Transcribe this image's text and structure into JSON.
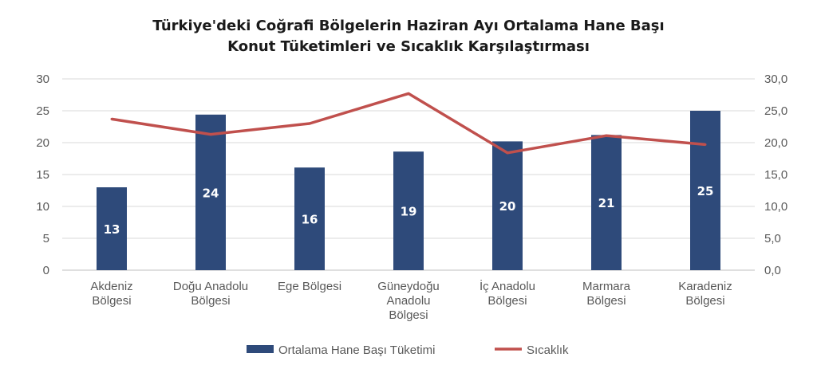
{
  "chart_data": {
    "type": "bar",
    "title_line1": "Türkiye'deki Coğrafi Bölgelerin Haziran Ayı Ortalama Hane Başı",
    "title_line2": "Konut Tüketimleri ve Sıcaklık Karşılaştırması",
    "categories": [
      [
        "Akdeniz",
        "Bölgesi"
      ],
      [
        "Doğu Anadolu",
        "Bölgesi"
      ],
      [
        "Ege Bölgesi"
      ],
      [
        "Güneydoğu",
        "Anadolu",
        "Bölgesi"
      ],
      [
        "İç Anadolu",
        "Bölgesi"
      ],
      [
        "Marmara",
        "Bölgesi"
      ],
      [
        "Karadeniz",
        "Bölgesi"
      ]
    ],
    "series": [
      {
        "name": "Ortalama Hane Başı Tüketimi",
        "type": "bar",
        "axis": "left",
        "color": "#2e4a7a",
        "values": [
          13,
          24.4,
          16.1,
          18.6,
          20.2,
          21.2,
          25
        ],
        "labels": [
          "13",
          "24",
          "16",
          "19",
          "20",
          "21",
          "25"
        ]
      },
      {
        "name": "Sıcaklık",
        "type": "line",
        "axis": "right",
        "color": "#c0504d",
        "values": [
          23.7,
          21.3,
          23.0,
          27.7,
          18.4,
          21.1,
          19.7
        ]
      }
    ],
    "y_left": {
      "min": 0,
      "max": 30,
      "ticks": [
        "0",
        "5",
        "10",
        "15",
        "20",
        "25",
        "30"
      ]
    },
    "y_right": {
      "min": 0,
      "max": 30,
      "ticks": [
        "0,0",
        "5,0",
        "10,0",
        "15,0",
        "20,0",
        "25,0",
        "30,0"
      ]
    },
    "grid": true,
    "legend_position": "bottom"
  }
}
